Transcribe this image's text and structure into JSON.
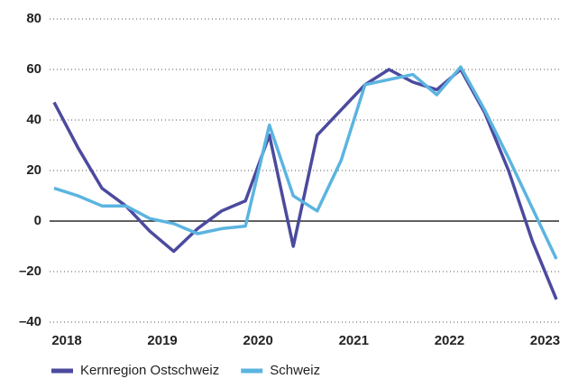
{
  "chart_data": {
    "type": "line",
    "categories": [
      "2018",
      null,
      null,
      null,
      "2019",
      null,
      null,
      null,
      "2020",
      null,
      null,
      null,
      "2021",
      null,
      null,
      null,
      "2022",
      null,
      null,
      null,
      "2023",
      null
    ],
    "series": [
      {
        "name": "Kernregion Ostschweiz",
        "color": "#4b4a9e",
        "values": [
          47,
          29,
          13,
          6,
          -4,
          -12,
          -3,
          4,
          8,
          34,
          -10,
          34,
          44,
          54,
          60,
          55,
          52,
          60,
          43,
          20,
          -8,
          -31
        ]
      },
      {
        "name": "Schweiz",
        "color": "#5bb4e0",
        "values": [
          13,
          10,
          6,
          6,
          1,
          -1,
          -5,
          -3,
          -2,
          38,
          10,
          4,
          24,
          54,
          56,
          58,
          50,
          61,
          44,
          25,
          5,
          -15
        ]
      }
    ],
    "ylim": [
      -40,
      80
    ],
    "yticks": [
      {
        "value": -40,
        "label": "–40"
      },
      {
        "value": -20,
        "label": "–20"
      },
      0,
      20,
      40,
      60,
      80
    ],
    "grid": true
  }
}
